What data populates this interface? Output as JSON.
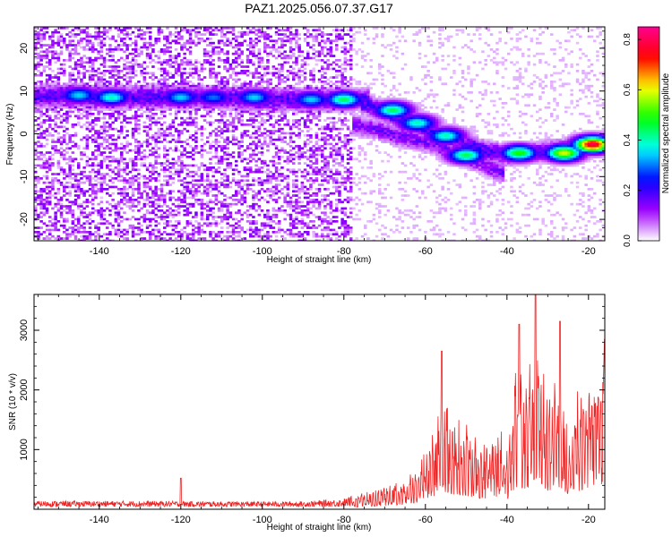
{
  "title": "PAZ1.2025.056.07.37.G17",
  "chart_data": [
    {
      "type": "heatmap",
      "xlabel": "Height of straight line (km)",
      "ylabel": "Frequency (Hz)",
      "xlim": [
        -156,
        -16
      ],
      "ylim": [
        -25,
        25
      ],
      "x_ticks": [
        -140,
        -120,
        -100,
        -80,
        -60,
        -40,
        -20
      ],
      "y_ticks": [
        -20,
        -10,
        0,
        10,
        20
      ],
      "colorbar": {
        "label": "Normalized spectral amplitude",
        "range": [
          0.0,
          0.85
        ],
        "ticks": [
          0.0,
          0.2,
          0.4,
          0.6,
          0.8
        ],
        "colormap": [
          "#ffffff",
          "#a000ff",
          "#0000ff",
          "#00ffff",
          "#00ff00",
          "#ffff00",
          "#ff0000",
          "#ff0090"
        ]
      },
      "ridges": [
        {
          "x": [
            -156,
            -150,
            -140,
            -130,
            -120,
            -110,
            -100,
            -90,
            -80,
            -75
          ],
          "y": [
            8.5,
            9,
            8.5,
            8.5,
            8.5,
            8.5,
            8,
            8,
            8,
            8
          ]
        },
        {
          "x": [
            -75,
            -70,
            -65,
            -60,
            -55,
            -50,
            -45,
            -40,
            -35,
            -30,
            -25,
            -20,
            -16
          ],
          "y": [
            7,
            5,
            3,
            1,
            -0.5,
            -2.5,
            -4,
            -5,
            -4.5,
            -4,
            -3.5,
            -2.5,
            -2
          ]
        },
        {
          "x": [
            -77,
            -72,
            -67,
            -62,
            -58,
            -54,
            -50,
            -46,
            -42
          ],
          "y": [
            2,
            1,
            -0.5,
            -1.5,
            -2.5,
            -4,
            -5.5,
            -7,
            -9
          ]
        }
      ],
      "peaks": [
        {
          "x": -145,
          "y": 9,
          "v": 0.35
        },
        {
          "x": -137,
          "y": 8.5,
          "v": 0.4
        },
        {
          "x": -120,
          "y": 8.5,
          "v": 0.35
        },
        {
          "x": -112,
          "y": 8.5,
          "v": 0.3
        },
        {
          "x": -102,
          "y": 8.5,
          "v": 0.35
        },
        {
          "x": -88,
          "y": 8,
          "v": 0.35
        },
        {
          "x": -80,
          "y": 8,
          "v": 0.45
        },
        {
          "x": -68,
          "y": 5.5,
          "v": 0.45
        },
        {
          "x": -62,
          "y": 2.5,
          "v": 0.4
        },
        {
          "x": -55,
          "y": -0.5,
          "v": 0.4
        },
        {
          "x": -50,
          "y": -5,
          "v": 0.45
        },
        {
          "x": -37,
          "y": -4.5,
          "v": 0.5
        },
        {
          "x": -26,
          "y": -4.5,
          "v": 0.6
        },
        {
          "x": -19,
          "y": -2.5,
          "v": 0.8
        }
      ]
    },
    {
      "type": "line",
      "xlabel": "Height of straight line (km)",
      "ylabel": "SNR (10 * v/v)",
      "xlim": [
        -156,
        -16
      ],
      "ylim": [
        0,
        3600
      ],
      "x_ticks": [
        -140,
        -120,
        -100,
        -80,
        -60,
        -40,
        -20
      ],
      "y_ticks": [
        1000,
        2000,
        3000
      ],
      "color": "#ee2222",
      "envelope": {
        "x": [
          -156,
          -130,
          -110,
          -90,
          -80,
          -75,
          -70,
          -65,
          -62,
          -58,
          -56,
          -54,
          -50,
          -46,
          -42,
          -40,
          -38,
          -35,
          -33,
          -30,
          -27,
          -25,
          -22,
          -19,
          -16
        ],
        "y": [
          110,
          110,
          100,
          100,
          150,
          300,
          380,
          520,
          750,
          1350,
          2100,
          1700,
          1500,
          1150,
          1450,
          1000,
          2400,
          2300,
          3500,
          1900,
          2500,
          1600,
          2100,
          2300,
          2800
        ]
      },
      "annotated_points": [
        {
          "x": -120,
          "y": 520
        },
        {
          "x": -56,
          "y": 2650
        },
        {
          "x": -37,
          "y": 3100
        },
        {
          "x": -33,
          "y": 3600
        },
        {
          "x": -27,
          "y": 3150
        },
        {
          "x": -16,
          "y": 2850
        }
      ]
    }
  ]
}
